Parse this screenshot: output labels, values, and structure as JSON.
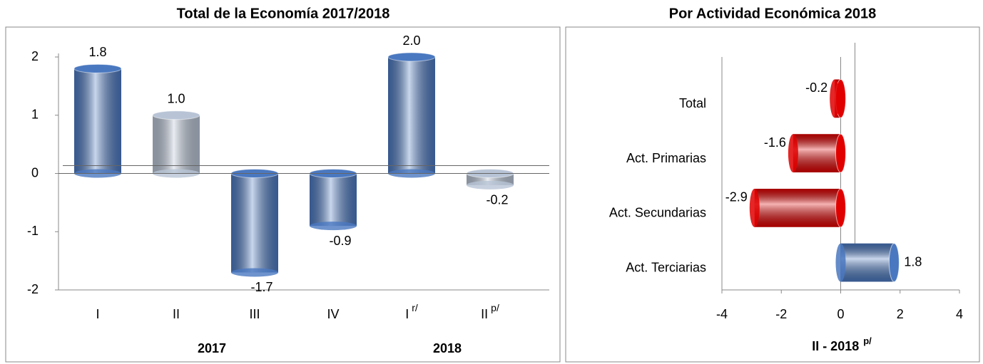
{
  "chart_data": [
    {
      "type": "bar",
      "title": "Total de la Economía 2017/2018",
      "categories": [
        "I",
        "II",
        "III",
        "IV",
        "I",
        "II"
      ],
      "category_superscripts": [
        null,
        null,
        null,
        null,
        "r/",
        "p/"
      ],
      "groups": [
        "2017",
        "2018"
      ],
      "values": [
        1.8,
        1.0,
        -1.7,
        -0.9,
        2.0,
        -0.2
      ],
      "value_labels": [
        "1.8",
        "1.0",
        "-1.7",
        "-0.9",
        "2.0",
        "-0.2"
      ],
      "colors": [
        "#4a78c0",
        "#b8c4d6",
        "#4a78c0",
        "#4a78c0",
        "#4a78c0",
        "#b8c4d6"
      ],
      "ylim": [
        -2,
        2
      ],
      "yticks": [
        -2,
        -1,
        0,
        1,
        2
      ]
    },
    {
      "type": "hbar",
      "title": "Por Actividad Económica 2018",
      "categories": [
        "Total",
        "Act. Primarias",
        "Act. Secundarias",
        "Act. Terciarias"
      ],
      "values": [
        -0.2,
        -1.6,
        -2.9,
        1.8
      ],
      "value_labels": [
        "-0.2",
        "-1.6",
        "-2.9",
        "1.8"
      ],
      "colors": [
        "#e00000",
        "#e00000",
        "#e00000",
        "#4a78c0"
      ],
      "xlabel": "II - 2018",
      "xlabel_superscript": "p/",
      "xlim": [
        -4,
        4
      ],
      "xticks": [
        -4,
        -2,
        0,
        2,
        4
      ]
    }
  ]
}
